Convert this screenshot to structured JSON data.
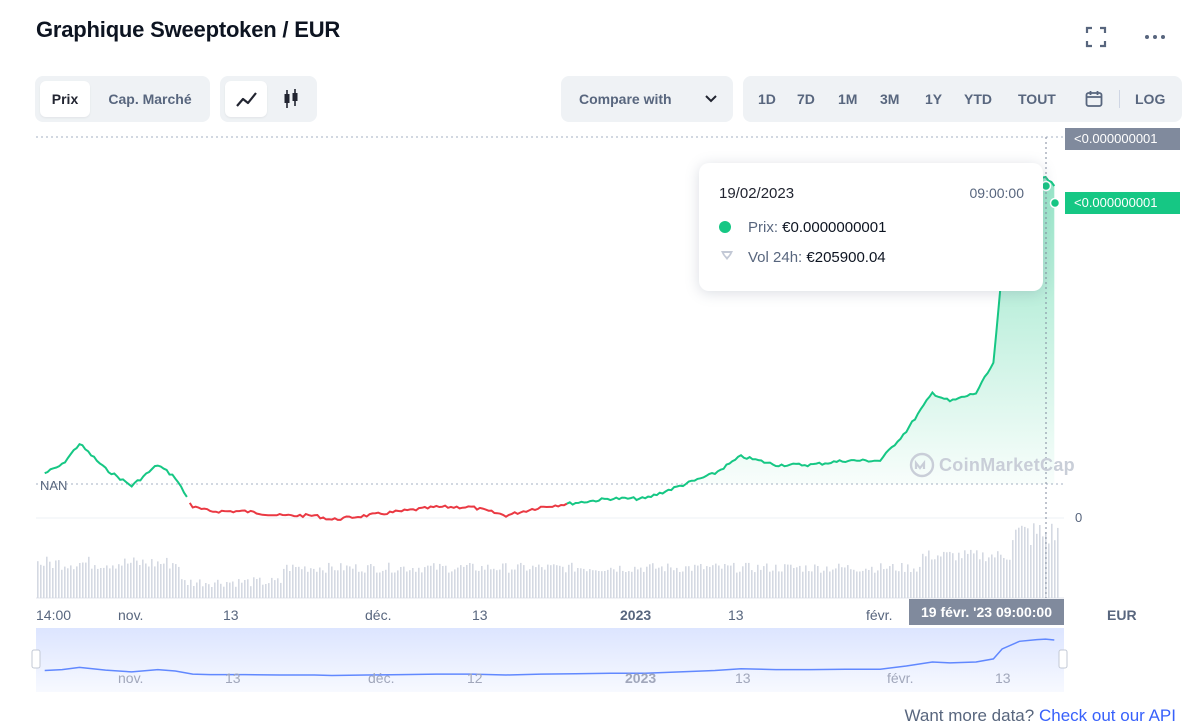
{
  "title": "Graphique Sweeptoken / EUR",
  "icons": {
    "fullscreen": "fullscreen-icon",
    "more": "more-icon",
    "calendar": "calendar-icon",
    "line_chart": "line-chart-icon",
    "candlestick": "candlestick-icon",
    "chevron": "chevron-down-icon",
    "volume": "volume-icon"
  },
  "toolbar": {
    "price_tab": "Prix",
    "mcap_tab": "Cap. Marché",
    "compare_label": "Compare with",
    "ranges": [
      "1D",
      "7D",
      "1M",
      "3M",
      "1Y",
      "YTD",
      "TOUT"
    ],
    "log_label": "LOG"
  },
  "tooltip": {
    "date": "19/02/2023",
    "time": "09:00:00",
    "price_label": "Prix:",
    "price_value": "€0.0000000001",
    "vol_label": "Vol 24h:",
    "vol_value": "€205900.04"
  },
  "price_tags": {
    "top": "<0.000000001",
    "current": "<0.000000001"
  },
  "hover_x_label": "19 févr. '23   09:00:00",
  "currency_label": "EUR",
  "watermark": "CoinMarketCap",
  "footer": {
    "text": "Want more data?",
    "link": "Check out our API"
  },
  "colors": {
    "up": "#16c784",
    "down": "#ea3943",
    "navigator": "#6188ff",
    "accent": "#3861fb"
  },
  "chart_data": {
    "type": "line",
    "y_left_label": "NAN",
    "y_right_zero": "0",
    "baseline_price": 0,
    "x_ticks": [
      "14:00",
      "nov.",
      "13",
      "déc.",
      "13",
      "2023",
      "13",
      "févr."
    ],
    "x_ticks_bold": [
      "2023"
    ],
    "navigator_ticks": [
      "nov.",
      "13",
      "déc.",
      "12",
      "2023",
      "13",
      "févr.",
      "13"
    ],
    "price_series_relative": [
      [
        "2022-10-26",
        0.3
      ],
      [
        "2022-10-28",
        0.32
      ],
      [
        "2022-10-30",
        0.37
      ],
      [
        "2022-11-02",
        0.31
      ],
      [
        "2022-11-05",
        0.27
      ],
      [
        "2022-11-08",
        0.32
      ],
      [
        "2022-11-10",
        0.29
      ],
      [
        "2022-11-12",
        0.22
      ],
      [
        "2022-11-14",
        0.21
      ],
      [
        "2022-11-18",
        0.21
      ],
      [
        "2022-11-22",
        0.2
      ],
      [
        "2022-11-26",
        0.2
      ],
      [
        "2022-11-28",
        0.19
      ],
      [
        "2022-12-02",
        0.2
      ],
      [
        "2022-12-06",
        0.21
      ],
      [
        "2022-12-10",
        0.22
      ],
      [
        "2022-12-14",
        0.22
      ],
      [
        "2022-12-18",
        0.2
      ],
      [
        "2022-12-22",
        0.22
      ],
      [
        "2022-12-26",
        0.23
      ],
      [
        "2022-12-30",
        0.24
      ],
      [
        "2023-01-03",
        0.24
      ],
      [
        "2023-01-07",
        0.27
      ],
      [
        "2023-01-11",
        0.3
      ],
      [
        "2023-01-14",
        0.34
      ],
      [
        "2023-01-18",
        0.32
      ],
      [
        "2023-01-22",
        0.32
      ],
      [
        "2023-01-26",
        0.33
      ],
      [
        "2023-01-30",
        0.33
      ],
      [
        "2023-02-02",
        0.4
      ],
      [
        "2023-02-05",
        0.49
      ],
      [
        "2023-02-07",
        0.47
      ],
      [
        "2023-02-10",
        0.49
      ],
      [
        "2023-02-12",
        0.56
      ],
      [
        "2023-02-13",
        0.78
      ],
      [
        "2023-02-15",
        0.95
      ],
      [
        "2023-02-17",
        0.99
      ],
      [
        "2023-02-18",
        1.0
      ],
      [
        "2023-02-19",
        0.98
      ]
    ],
    "volume_series_relative": [
      0.3,
      0.55,
      0.85,
      0.45
    ],
    "highlighted": {
      "date": "19/02/2023",
      "time": "09:00:00",
      "price": "€0.0000000001",
      "volume_24h": "€205900.04"
    }
  }
}
